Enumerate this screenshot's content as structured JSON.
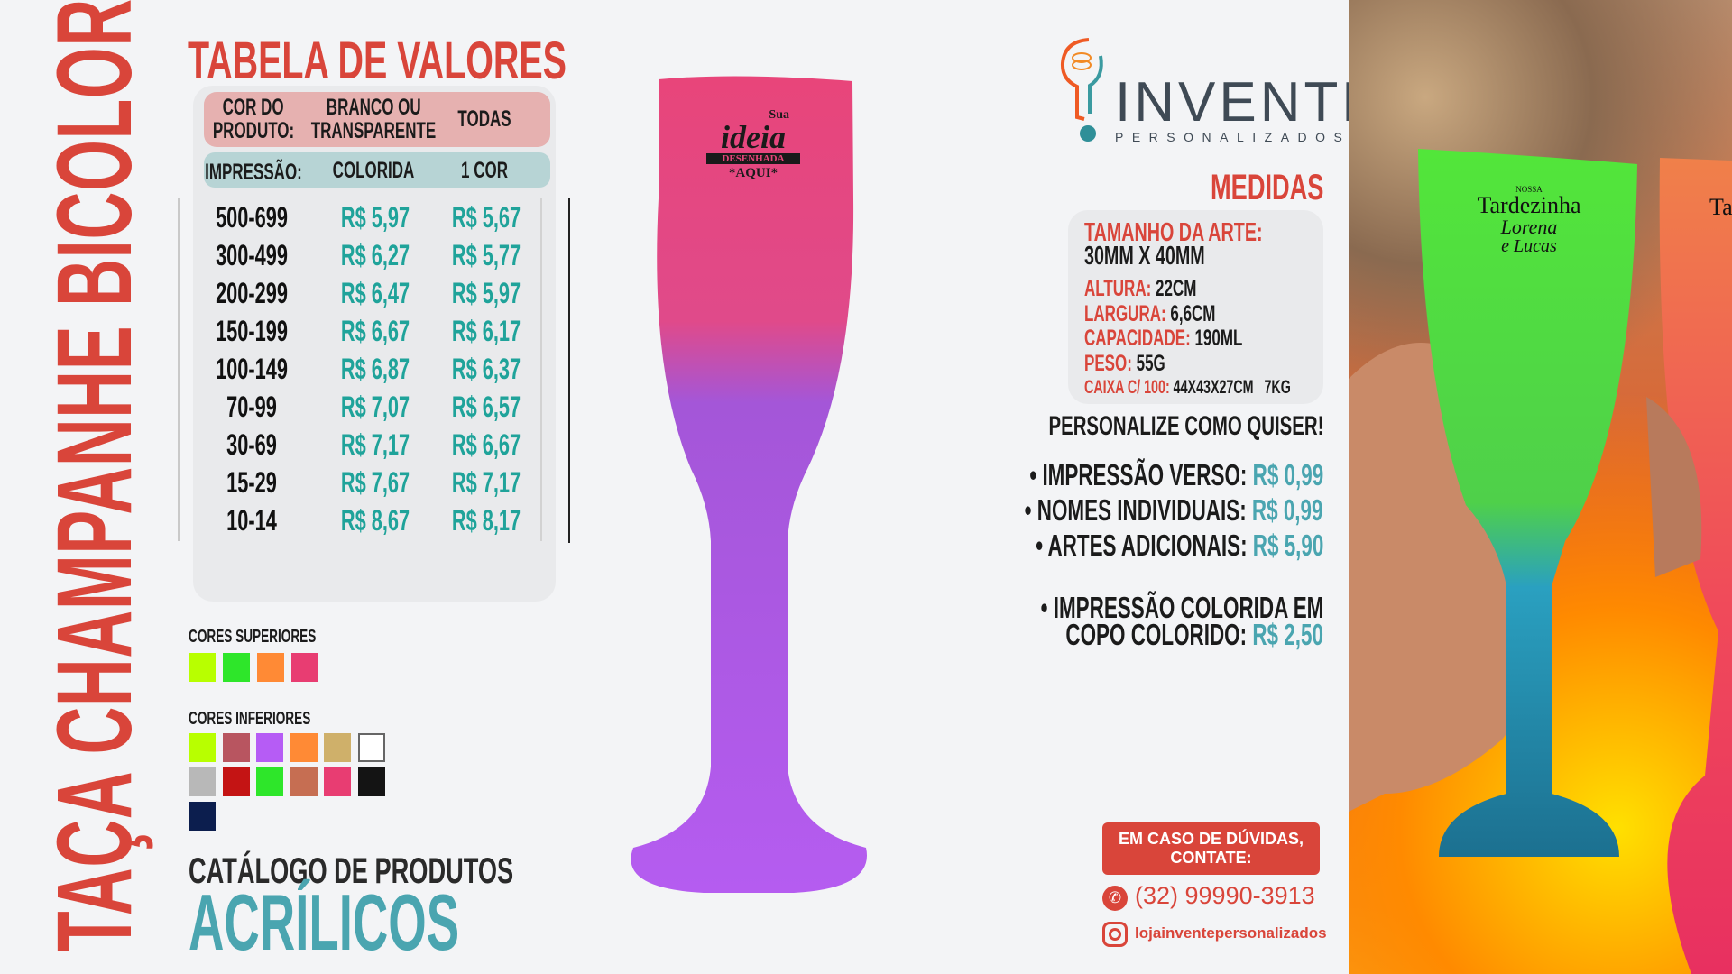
{
  "product_title": "TAÇA CHAMPANHE BICOLOR",
  "price_table": {
    "title": "TABELA DE VALORES",
    "header": {
      "col1": [
        "COR DO",
        "PRODUTO:"
      ],
      "col2": [
        "BRANCO OU",
        "TRANSPARENTE"
      ],
      "col3": "TODAS"
    },
    "subheader": {
      "col1": "IMPRESSÃO:",
      "col2": "COLORIDA",
      "col3": "1 COR"
    },
    "rows": [
      {
        "qty": "500-699",
        "colorida": "R$ 5,97",
        "uma_cor": "R$ 5,67"
      },
      {
        "qty": "300-499",
        "colorida": "R$ 6,27",
        "uma_cor": "R$ 5,77"
      },
      {
        "qty": "200-299",
        "colorida": "R$ 6,47",
        "uma_cor": "R$ 5,97"
      },
      {
        "qty": "150-199",
        "colorida": "R$ 6,67",
        "uma_cor": "R$ 6,17"
      },
      {
        "qty": "100-149",
        "colorida": "R$ 6,87",
        "uma_cor": "R$ 6,37"
      },
      {
        "qty": "70-99",
        "colorida": "R$ 7,07",
        "uma_cor": "R$ 6,57"
      },
      {
        "qty": "30-69",
        "colorida": "R$ 7,17",
        "uma_cor": "R$ 6,67"
      },
      {
        "qty": "15-29",
        "colorida": "R$ 7,67",
        "uma_cor": "R$ 7,17"
      },
      {
        "qty": "10-14",
        "colorida": "R$ 8,67",
        "uma_cor": "R$ 8,17"
      }
    ]
  },
  "colors": {
    "top_label": "CORES SUPERIORES",
    "top": [
      "#b8ff00",
      "#2ee62a",
      "#ff8a35",
      "#e83d72"
    ],
    "bottom_label": "CORES INFERIORES",
    "bottom": [
      "#b8ff00",
      "#b85560",
      "#b65cf5",
      "#ff8a35",
      "#cfb06a",
      "#ffffff",
      "#b8b8b8",
      "#c41414",
      "#2ee62a",
      "#c66e52",
      "#e83d72",
      "#141414",
      "#0c1e4e"
    ]
  },
  "catalog": {
    "label": "CATÁLOGO DE PRODUTOS",
    "category": "ACRÍLICOS"
  },
  "glass_print": {
    "line1": "Sua",
    "line2": "ideia",
    "line3": "DESENHADA",
    "line4": "*AQUI*"
  },
  "brand": {
    "name": "INVENTE",
    "sub": "PERSONALIZADOS"
  },
  "measures": {
    "title": "MEDIDAS",
    "art_size_label": "TAMANHO DA ARTE:",
    "art_size_value": "30MM X 40MM",
    "items": [
      {
        "label": "ALTURA:",
        "value": "22CM"
      },
      {
        "label": "LARGURA:",
        "value": "6,6CM"
      },
      {
        "label": "CAPACIDADE:",
        "value": "190ML"
      },
      {
        "label": "PESO:",
        "value": "55G"
      },
      {
        "label": "CAIXA C/ 100:",
        "value": "44X43X27CM   7KG"
      }
    ]
  },
  "customize": {
    "title": "PERSONALIZE COMO QUISER!",
    "extras": [
      {
        "label": "• IMPRESSÃO VERSO:",
        "price": "R$ 0,99"
      },
      {
        "label": "• NOMES INDIVIDUAIS:",
        "price": "R$ 0,99"
      },
      {
        "label": "• ARTES ADICIONAIS:",
        "price": "R$ 5,90"
      }
    ],
    "colored_line1": "• IMPRESSÃO COLORIDA EM",
    "colored_line2": "COPO COLORIDO:",
    "colored_price": "R$ 2,50"
  },
  "contact": {
    "title_line1": "EM CASO DE DÚVIDAS,",
    "title_line2": "CONTATE:",
    "phone": "(32) 99990-3913",
    "instagram": "lojainventepersonalizados"
  },
  "photo_print": {
    "line1": "NOSSA",
    "line2": "Tardezinha",
    "line3": "Lorena",
    "line4": "e Lucas",
    "partial": "Ta"
  }
}
